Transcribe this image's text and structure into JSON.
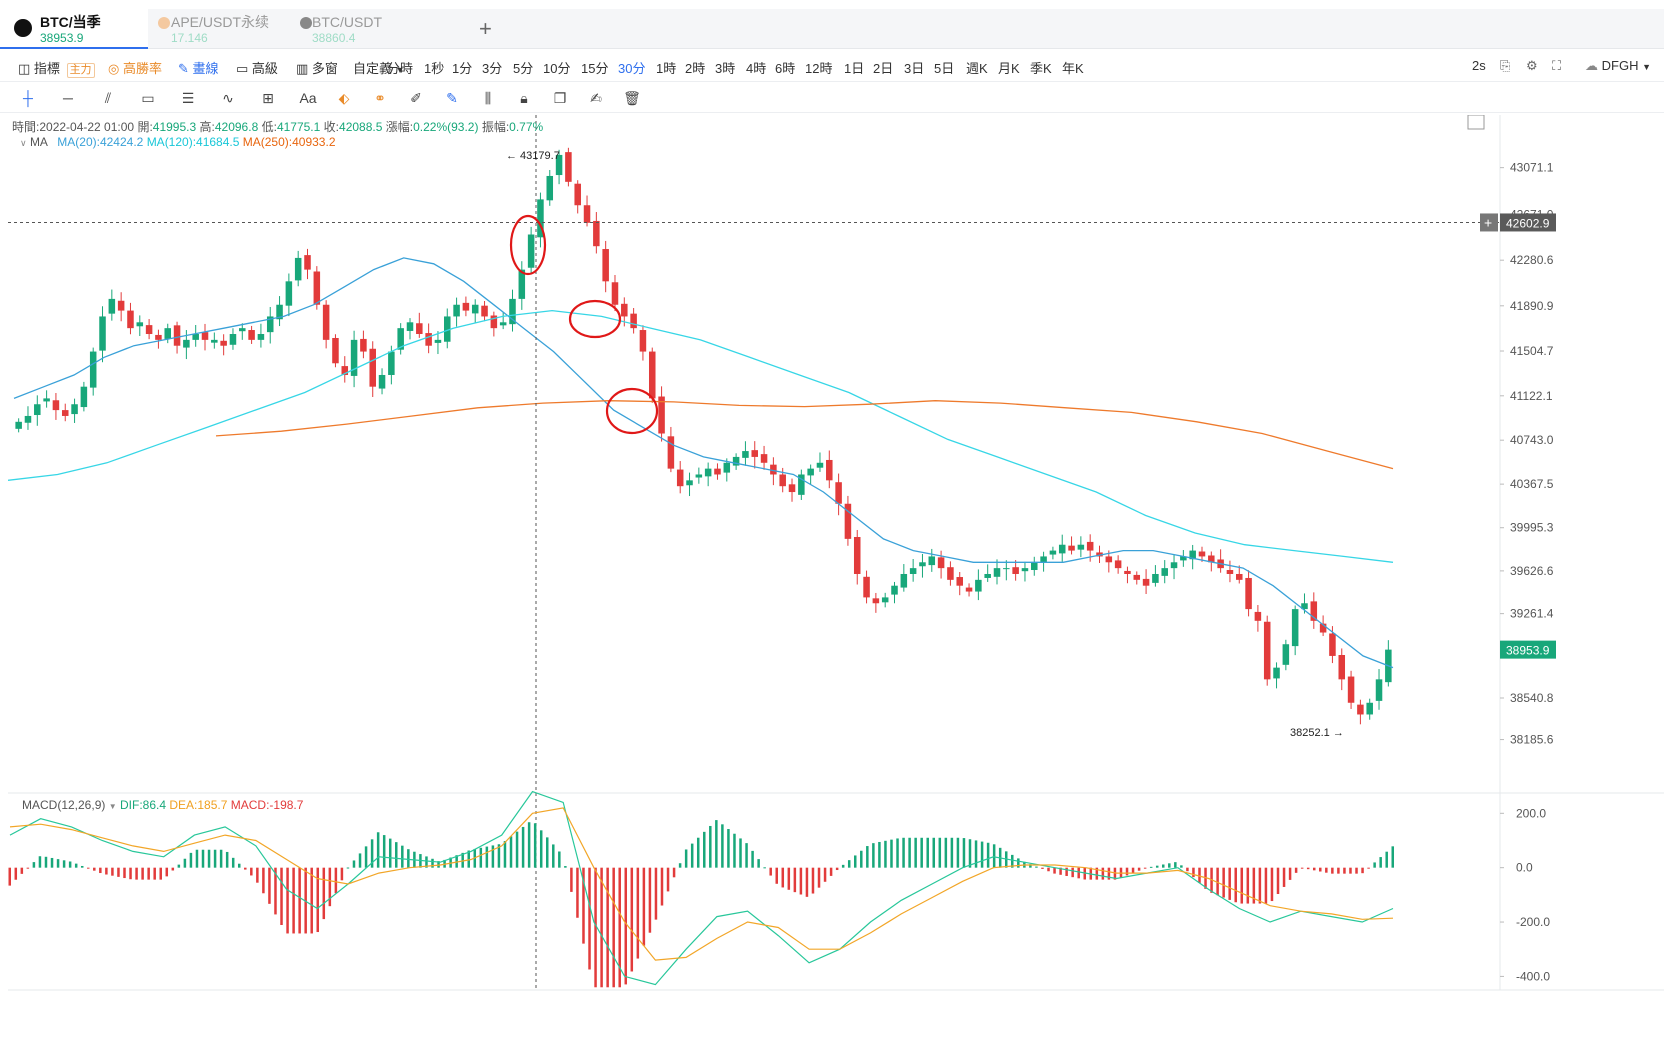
{
  "tabs": [
    {
      "name": "BTC/当季",
      "price": "38953.9",
      "icon": "btc-icon"
    },
    {
      "name": "APE/USDT永续",
      "price": "17.146",
      "icon": "ape-icon"
    },
    {
      "name": "BTC/USDT",
      "price": "38860.4",
      "icon": "btc-icon"
    }
  ],
  "toolbar": {
    "indicators": "指標",
    "main_badge": "主力",
    "high_win": "高勝率",
    "draw": "畫線",
    "advanced": "高級",
    "multi": "多窗",
    "custom": "自定義",
    "intervals": [
      "分時",
      "1秒",
      "1分",
      "3分",
      "5分",
      "10分",
      "15分",
      "30分",
      "1時",
      "2時",
      "3時",
      "4時",
      "6時",
      "12時",
      "1日",
      "2日",
      "3日",
      "5日",
      "週K",
      "月K",
      "季K",
      "年K"
    ],
    "active_interval": "30分",
    "refresh": "2s",
    "account": "DFGH"
  },
  "info": {
    "time_label": "時間:",
    "time": "2022-04-22 01:00",
    "open_label": "開:",
    "open": "41995.3",
    "high_label": "高:",
    "high": "42096.8",
    "low_label": "低:",
    "low": "41775.1",
    "close_label": "收:",
    "close": "42088.5",
    "change_label": "漲幅:",
    "change": "0.22%(93.2)",
    "amp_label": "振幅:",
    "amp": "0.77%"
  },
  "ma_legend": {
    "label": "MA",
    "ma20": "MA(20):42424.2",
    "ma120": "MA(120):41684.5",
    "ma250": "MA(250):40933.2"
  },
  "macd_legend": {
    "label": "MACD(12,26,9)",
    "dif": "DIF:86.4",
    "dea": "DEA:185.7",
    "macd": "MACD:-198.7"
  },
  "price_axis": {
    "ticks": [
      "43071.1",
      "42671.0",
      "42280.6",
      "41890.9",
      "41504.7",
      "41122.1",
      "40743.0",
      "40367.5",
      "39995.3",
      "39626.6",
      "39261.4",
      "38540.8",
      "38185.6"
    ],
    "crosshair_price": "42602.9",
    "last_price": "38953.9",
    "max_label": "43179.7",
    "min_label": "38252.1"
  },
  "macd_axis": {
    "ticks": [
      "200.0",
      "0.0",
      "-200.0",
      "-400.0"
    ]
  },
  "colors": {
    "up": "#18a77a",
    "down": "#e23b3b",
    "ma20": "#3aa1d8",
    "ma120": "#37d6e6",
    "ma250": "#ee7a2c",
    "dif": "#28c79a",
    "dea": "#f2a628",
    "annotation": "#e01818"
  },
  "chart_data": {
    "type": "candlestick",
    "interval": "30分",
    "y_range": [
      37900,
      43350
    ],
    "highlighted_bar": {
      "time": "2022-04-22 01:00",
      "open": 41995.3,
      "high": 42096.8,
      "low": 41775.1,
      "close": 42088.5
    },
    "closes": [
      40900,
      40950,
      41050,
      41100,
      41000,
      40950,
      41050,
      41200,
      41500,
      41800,
      41950,
      41850,
      41700,
      41750,
      41650,
      41600,
      41700,
      41550,
      41600,
      41650,
      41600,
      41600,
      41550,
      41650,
      41700,
      41600,
      41650,
      41800,
      41900,
      42100,
      42300,
      42200,
      41900,
      41600,
      41400,
      41300,
      41600,
      41500,
      41200,
      41300,
      41500,
      41700,
      41750,
      41650,
      41550,
      41600,
      41800,
      41900,
      41850,
      41900,
      41800,
      41700,
      41750,
      41950,
      42200,
      42500,
      42800,
      43000,
      43179.7,
      42950,
      42750,
      42600,
      42400,
      42100,
      41900,
      41800,
      41700,
      41500,
      41100,
      40800,
      40500,
      40350,
      40400,
      40450,
      40500,
      40450,
      40550,
      40600,
      40650,
      40600,
      40550,
      40450,
      40350,
      40300,
      40450,
      40500,
      40550,
      40400,
      40200,
      39900,
      39600,
      39400,
      39350,
      39400,
      39500,
      39600,
      39650,
      39700,
      39750,
      39650,
      39550,
      39500,
      39450,
      39550,
      39600,
      39650,
      39650,
      39600,
      39650,
      39700,
      39750,
      39800,
      39850,
      39800,
      39850,
      39800,
      39750,
      39700,
      39650,
      39600,
      39550,
      39500,
      39600,
      39650,
      39700,
      39750,
      39800,
      39750,
      39700,
      39650,
      39600,
      39550,
      39300,
      39200,
      38700,
      38800,
      39000,
      39300,
      39350,
      39200,
      39100,
      38900,
      38700,
      38500,
      38400,
      38500,
      38700,
      38953.9
    ],
    "ma20": [
      41100,
      41200,
      41300,
      41450,
      41550,
      41600,
      41650,
      41700,
      41750,
      41800,
      41900,
      42050,
      42200,
      42300,
      42250,
      42100,
      41900,
      41700,
      41500,
      41250,
      41000,
      40850,
      40700,
      40600,
      40550,
      40500,
      40450,
      40300,
      40100,
      39900,
      39800,
      39750,
      39700,
      39700,
      39700,
      39700,
      39750,
      39800,
      39800,
      39750,
      39700,
      39650,
      39500,
      39300,
      39100,
      38900,
      38800
    ],
    "ma120": [
      40400,
      40450,
      40550,
      40700,
      40850,
      41000,
      41150,
      41350,
      41550,
      41700,
      41800,
      41850,
      41800,
      41700,
      41600,
      41450,
      41300,
      41150,
      40950,
      40750,
      40600,
      40450,
      40300,
      40100,
      39950,
      39850,
      39800,
      39750,
      39700
    ],
    "ma250": [
      40780,
      40820,
      40880,
      40950,
      41020,
      41060,
      41080,
      41070,
      41040,
      41030,
      41050,
      41080,
      41060,
      41020,
      40980,
      40900,
      40800,
      40650,
      40500
    ],
    "macd": {
      "dif": [
        120,
        180,
        150,
        100,
        60,
        40,
        120,
        150,
        80,
        -80,
        -150,
        -60,
        40,
        30,
        20,
        60,
        120,
        280,
        240,
        -200,
        -400,
        -430,
        -300,
        -180,
        -160,
        -250,
        -350,
        -300,
        -200,
        -120,
        -60,
        0,
        40,
        20,
        0,
        -20,
        -40,
        -20,
        0,
        -80,
        -150,
        -200,
        -160,
        -180,
        -200,
        -150
      ],
      "dea": [
        150,
        160,
        140,
        110,
        80,
        60,
        90,
        120,
        100,
        30,
        -40,
        -60,
        -20,
        0,
        10,
        30,
        80,
        200,
        220,
        0,
        -200,
        -340,
        -330,
        -260,
        -200,
        -220,
        -300,
        -300,
        -240,
        -170,
        -110,
        -50,
        0,
        10,
        10,
        0,
        -20,
        -20,
        -10,
        -40,
        -90,
        -140,
        -160,
        -170,
        -190,
        -185.7
      ],
      "hist_range": [
        -400,
        200
      ]
    }
  }
}
